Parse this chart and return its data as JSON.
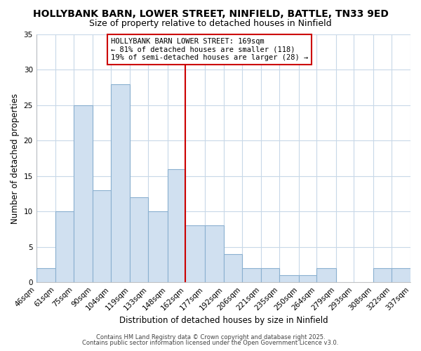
{
  "title": "HOLLYBANK BARN, LOWER STREET, NINFIELD, BATTLE, TN33 9ED",
  "subtitle": "Size of property relative to detached houses in Ninfield",
  "xlabel": "Distribution of detached houses by size in Ninfield",
  "ylabel": "Number of detached properties",
  "bar_heights": [
    2,
    10,
    25,
    13,
    28,
    12,
    10,
    16,
    8,
    8,
    4,
    2,
    2,
    1,
    1,
    2,
    0,
    0,
    2,
    2
  ],
  "bin_edges": [
    46,
    61,
    75,
    90,
    104,
    119,
    133,
    148,
    162,
    177,
    192,
    206,
    221,
    235,
    250,
    264,
    279,
    293,
    308,
    322,
    337
  ],
  "tick_labels": [
    "46sqm",
    "61sqm",
    "75sqm",
    "90sqm",
    "104sqm",
    "119sqm",
    "133sqm",
    "148sqm",
    "162sqm",
    "177sqm",
    "192sqm",
    "206sqm",
    "221sqm",
    "235sqm",
    "250sqm",
    "264sqm",
    "279sqm",
    "293sqm",
    "308sqm",
    "322sqm",
    "337sqm"
  ],
  "bar_color": "#d0e0f0",
  "bar_edgecolor": "#8ab0d0",
  "vline_x": 162,
  "vline_color": "#cc0000",
  "ylim": [
    0,
    35
  ],
  "yticks": [
    0,
    5,
    10,
    15,
    20,
    25,
    30,
    35
  ],
  "annotation_title": "HOLLYBANK BARN LOWER STREET: 169sqm",
  "annotation_line1": "← 81% of detached houses are smaller (118)",
  "annotation_line2": "19% of semi-detached houses are larger (28) →",
  "annotation_box_color": "#ffffff",
  "annotation_edgecolor": "#cc0000",
  "background_color": "#ffffff",
  "plot_bg_color": "#ffffff",
  "grid_color": "#c8d8e8",
  "title_fontsize": 10,
  "subtitle_fontsize": 9,
  "axis_label_fontsize": 8.5,
  "tick_fontsize": 7.5,
  "annotation_fontsize": 7.5,
  "footer_line1": "Contains HM Land Registry data © Crown copyright and database right 2025.",
  "footer_line2": "Contains public sector information licensed under the Open Government Licence v3.0.",
  "footer_fontsize": 6
}
